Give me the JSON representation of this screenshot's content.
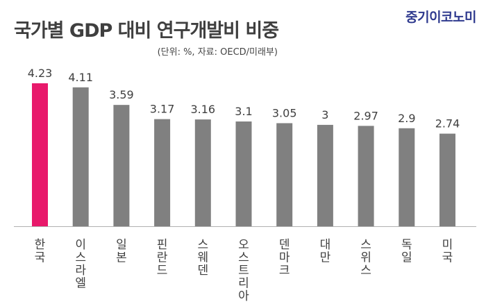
{
  "title": "국가별 GDP 대비 연구개발비 비중",
  "brand": "중기이코노미",
  "unit_note": "(단위: %, 자료: OECD/미래부)",
  "colors": {
    "highlight": "#e8196b",
    "bar": "#808080",
    "axis": "#b0b0b0",
    "text": "#404040"
  },
  "chart_data": {
    "type": "bar",
    "categories": [
      "한국",
      "이스라엘",
      "일본",
      "핀란드",
      "스웨덴",
      "오스트리아",
      "덴마크",
      "대만",
      "스위스",
      "독일",
      "미국"
    ],
    "values": [
      4.23,
      4.11,
      3.59,
      3.17,
      3.16,
      3.1,
      3.05,
      3,
      2.97,
      2.9,
      2.74
    ],
    "value_labels": [
      "4.23",
      "4.11",
      "3.59",
      "3.17",
      "3.16",
      "3.1",
      "3.05",
      "3",
      "2.97",
      "2.9",
      "2.74"
    ],
    "highlight_index": 0,
    "ylim": [
      0,
      4.23
    ],
    "label_orientation": "vertical-stacked",
    "grid": false,
    "legend": "none"
  }
}
